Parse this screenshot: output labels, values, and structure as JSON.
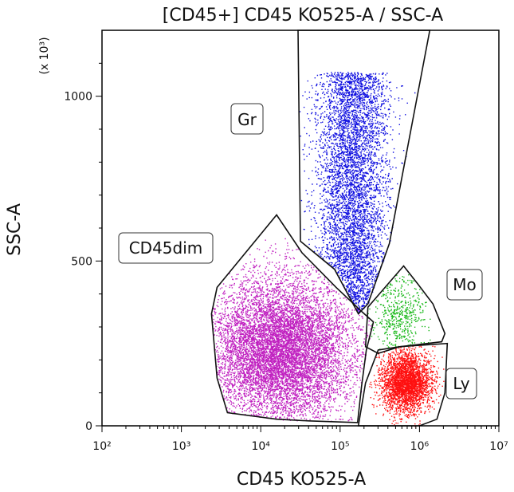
{
  "chart_data": {
    "type": "scatter",
    "title": "[CD45+] CD45 KO525-A / SSC-A",
    "xlabel": "CD45 KO525-A",
    "ylabel": "SSC-A",
    "y_multiplier_label": "(x 10³)",
    "x_scale": "log",
    "xlim": [
      100,
      10000000
    ],
    "ylim": [
      0,
      1200
    ],
    "x_ticks": [
      {
        "label": "10²",
        "value": 100
      },
      {
        "label": "10³",
        "value": 1000
      },
      {
        "label": "10⁴",
        "value": 10000
      },
      {
        "label": "10⁵",
        "value": 100000
      },
      {
        "label": "10⁶",
        "value": 1000000
      },
      {
        "label": "10⁷",
        "value": 10000000
      }
    ],
    "y_ticks": [
      {
        "label": "0",
        "value": 0
      },
      {
        "label": "500",
        "value": 500
      },
      {
        "label": "1000",
        "value": 1000
      }
    ],
    "populations": [
      {
        "name": "Gr",
        "color": "#1010e0",
        "x_log_center": 5.15,
        "y_center": 660,
        "x_log_spread": 0.22,
        "y_spread": 230
      },
      {
        "name": "CD45dim",
        "color": "#c020c0",
        "x_log_center": 4.25,
        "y_center": 230,
        "x_log_spread": 0.45,
        "y_spread": 110
      },
      {
        "name": "Mo",
        "color": "#18b818",
        "x_log_center": 5.75,
        "y_center": 330,
        "x_log_spread": 0.17,
        "y_spread": 75
      },
      {
        "name": "Ly",
        "color": "#ff1010",
        "x_log_center": 5.83,
        "y_center": 135,
        "x_log_spread": 0.16,
        "y_spread": 45
      }
    ],
    "gates": [
      {
        "name": "Gr",
        "vertices": [
          [
            4.47,
            1200
          ],
          [
            5.21,
            1200
          ],
          [
            6.13,
            1200
          ],
          [
            5.62,
            553
          ],
          [
            5.35,
            370
          ],
          [
            5.23,
            340
          ],
          [
            4.93,
            475
          ],
          [
            4.5,
            560
          ]
        ]
      },
      {
        "name": "CD45dim",
        "vertices": [
          [
            4.2,
            640
          ],
          [
            4.52,
            525
          ],
          [
            4.95,
            420
          ],
          [
            5.28,
            345
          ],
          [
            5.42,
            315
          ],
          [
            5.33,
            230
          ],
          [
            5.27,
            120
          ],
          [
            5.22,
            10
          ],
          [
            4.6,
            15
          ],
          [
            4.2,
            20
          ],
          [
            3.58,
            40
          ],
          [
            3.45,
            145
          ],
          [
            3.38,
            340
          ],
          [
            3.45,
            420
          ]
        ]
      },
      {
        "name": "Mo",
        "vertices": [
          [
            5.8,
            485
          ],
          [
            5.98,
            430
          ],
          [
            6.17,
            370
          ],
          [
            6.32,
            280
          ],
          [
            6.28,
            255
          ],
          [
            5.75,
            240
          ],
          [
            5.48,
            220
          ],
          [
            5.32,
            240
          ],
          [
            5.35,
            360
          ]
        ]
      },
      {
        "name": "Ly",
        "vertices": [
          [
            5.48,
            230
          ],
          [
            5.75,
            240
          ],
          [
            6.35,
            250
          ],
          [
            6.32,
            100
          ],
          [
            6.22,
            20
          ],
          [
            6.0,
            0
          ],
          [
            5.6,
            0
          ],
          [
            5.23,
            0
          ],
          [
            5.32,
            130
          ]
        ]
      }
    ],
    "gate_labels": [
      {
        "name": "Gr",
        "text": "Gr"
      },
      {
        "name": "CD45dim",
        "text": "CD45dim"
      },
      {
        "name": "Mo",
        "text": "Mo"
      },
      {
        "name": "Ly",
        "text": "Ly"
      }
    ],
    "dot_colors": {
      "frame": "#000000",
      "gate_stroke": "#111111"
    }
  }
}
